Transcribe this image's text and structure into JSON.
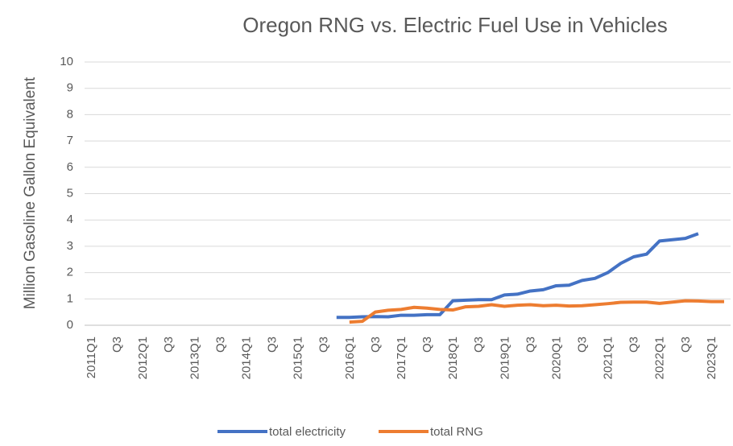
{
  "chart_data": {
    "type": "line",
    "title": "Oregon  RNG vs. Electric Fuel Use in Vehicles",
    "y_label": "Million Gasoline Gallon Equivalent",
    "categories": [
      "2011Q1",
      null,
      "Q3",
      null,
      "2012Q1",
      null,
      "Q3",
      null,
      "2013Q1",
      null,
      "Q3",
      null,
      "2014Q1",
      null,
      "Q3",
      null,
      "2015Q1",
      null,
      "Q3",
      null,
      "2016Q1",
      null,
      "Q3",
      null,
      "2017Q1",
      null,
      "Q3",
      null,
      "2018Q1",
      null,
      "Q3",
      null,
      "2019Q1",
      null,
      "Q3",
      null,
      "2020Q1",
      null,
      "Q3",
      null,
      "2021Q1",
      null,
      "Q3",
      null,
      "2022Q1",
      null,
      "Q3",
      null,
      "2023Q1",
      null
    ],
    "series": [
      {
        "name": "total electricity",
        "color": "#4472c4",
        "values": [
          null,
          null,
          null,
          null,
          null,
          null,
          null,
          null,
          null,
          null,
          null,
          null,
          null,
          null,
          null,
          null,
          null,
          null,
          null,
          0.3,
          0.3,
          0.32,
          0.33,
          0.32,
          0.38,
          0.38,
          0.4,
          0.4,
          0.93,
          0.95,
          0.97,
          0.97,
          1.15,
          1.18,
          1.3,
          1.35,
          1.5,
          1.52,
          1.7,
          1.78,
          2.0,
          2.35,
          2.6,
          2.7,
          3.2,
          3.25,
          3.3,
          3.48,
          null,
          null
        ]
      },
      {
        "name": "total RNG",
        "color": "#ed7d31",
        "values": [
          null,
          null,
          null,
          null,
          null,
          null,
          null,
          null,
          null,
          null,
          null,
          null,
          null,
          null,
          null,
          null,
          null,
          null,
          null,
          null,
          0.12,
          0.15,
          0.5,
          0.57,
          0.6,
          0.68,
          0.65,
          0.6,
          0.58,
          0.7,
          0.72,
          0.78,
          0.72,
          0.76,
          0.78,
          0.74,
          0.76,
          0.73,
          0.74,
          0.78,
          0.82,
          0.87,
          0.88,
          0.88,
          0.83,
          0.88,
          0.93,
          0.92,
          0.9,
          0.9
        ]
      }
    ],
    "ylim": [
      0,
      10
    ],
    "yticks": [
      0,
      1,
      2,
      3,
      4,
      5,
      6,
      7,
      8,
      9,
      10
    ],
    "grid": true,
    "legend": "bottom"
  }
}
